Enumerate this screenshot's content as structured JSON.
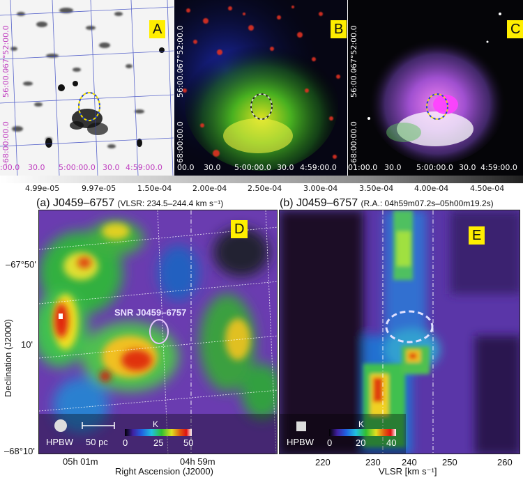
{
  "top_panels": {
    "A": {
      "badge": "A",
      "dec_ticks": [
        "-67°52:00.0",
        "56:00.0",
        "-68:00:00.0"
      ],
      "ra_ticks": [
        ":00.0",
        "30.0",
        "5:00:00.0",
        "30.0",
        "4:59:00.0"
      ]
    },
    "B": {
      "badge": "B",
      "dec_ticks": [
        "-67°52:00.0",
        "56:00.0",
        "-68:00:00.0"
      ],
      "ra_ticks": [
        "00.0",
        "30.0",
        "5:00:00.0",
        "30.0",
        "4:59:00.0"
      ]
    },
    "C": {
      "badge": "C",
      "dec_ticks": [
        "-67°52:00.0",
        "56:00.0",
        "-68:00:00.0"
      ],
      "ra_ticks": [
        "01:00.0",
        "30.0",
        "5:00:00.0",
        "30.0",
        "4:59:00.0"
      ]
    }
  },
  "gradient_bar": {
    "labels": [
      "4.99e-05",
      "9.97e-05",
      "1.50e-04",
      "2.00e-04",
      "2.50e-04",
      "3.00e-04",
      "3.50e-04",
      "4.00e-04",
      "4.50e-04"
    ]
  },
  "panel_D": {
    "title_main": "(a) J0459–6757",
    "title_sub": "(VLSR: 234.5–244.4 km s⁻¹)",
    "badge": "D",
    "snr_label": "SNR J0459–6757",
    "ylabel": "Declination (J2000)",
    "xlabel": "Right Ascension (J2000)",
    "y_ticks": [
      "–67°50'",
      "10'",
      "–68°10'"
    ],
    "x_ticks": [
      "05h 01m",
      "04h 59m"
    ],
    "hpbw": "HPBW",
    "scale": "50 pc",
    "cb_unit": "K",
    "cb_ticks": [
      "0",
      "25",
      "50"
    ]
  },
  "panel_E": {
    "title_main": "(b) J0459–6757",
    "title_sub": "(R.A.: 04h59m07.2s–05h00m19.2s)",
    "badge": "E",
    "xlabel": "VLSR [km s⁻¹]",
    "x_ticks": [
      "220",
      "230",
      "240",
      "250",
      "260"
    ],
    "hpbw": "HPBW",
    "cb_unit": "K",
    "cb_ticks": [
      "0",
      "20",
      "40"
    ]
  },
  "colors": {
    "badge": "#ffee00",
    "grid_magenta": "#c040c0",
    "grid_blue": "#3040c0"
  }
}
